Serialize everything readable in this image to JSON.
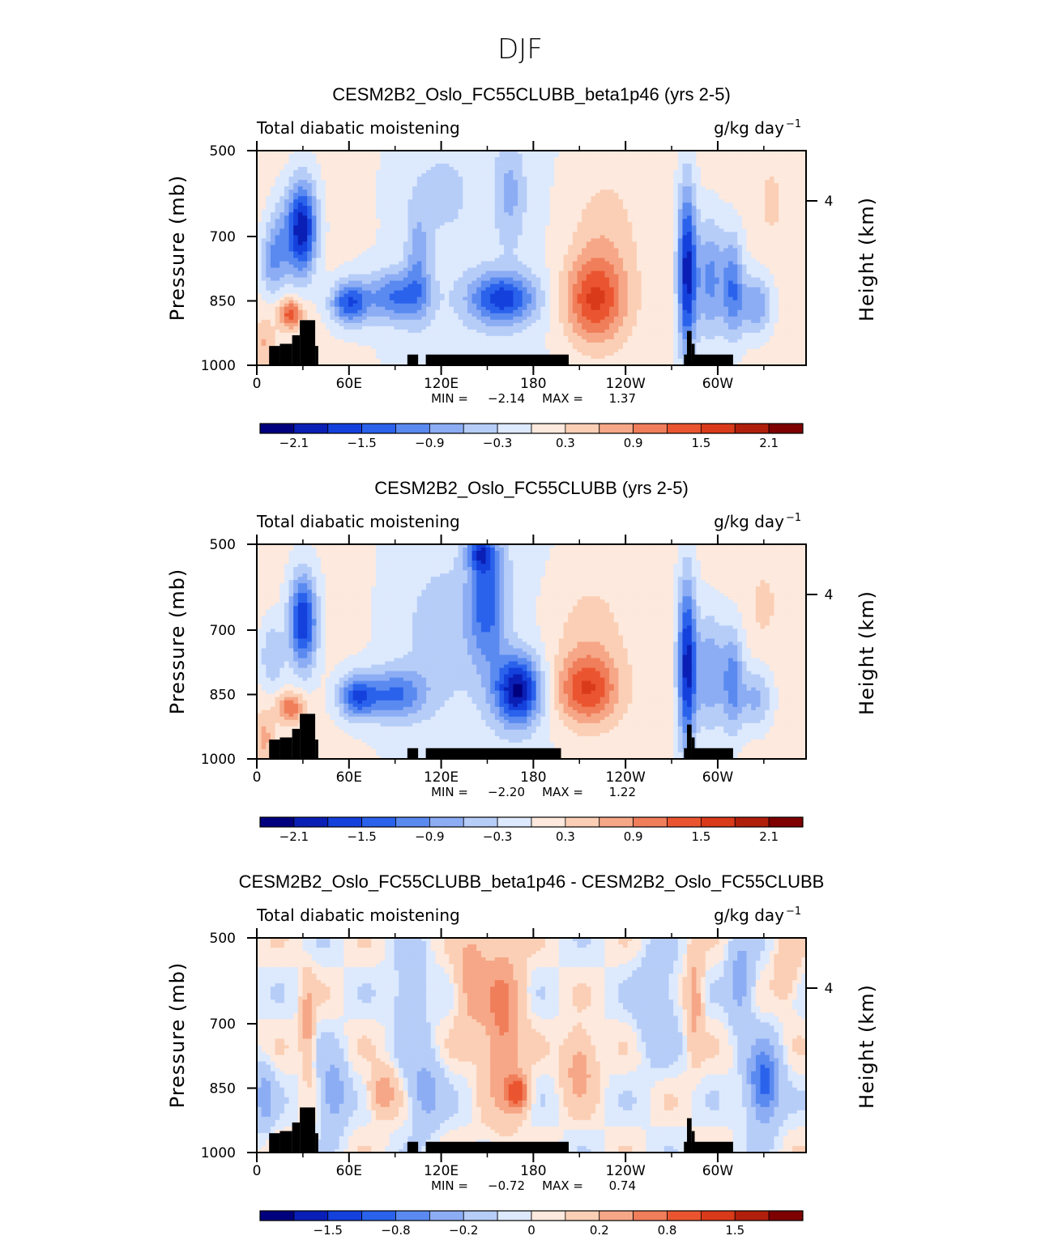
{
  "figure": {
    "season": "DJF"
  },
  "chart_data": [
    {
      "type": "heatmap",
      "title": "CESM2B2_Oslo_FC55CLUBB_beta1p46 (yrs 2-5)",
      "left_string": "Total diabatic moistening",
      "units_base": "g/kg day",
      "units_exp": "−1",
      "ylabel": "Pressure (mb)",
      "ylabel_right": "Height (km)",
      "x_ticks": [
        "0",
        "60E",
        "120E",
        "180",
        "120W",
        "60W"
      ],
      "x_tick_values": [
        0,
        60,
        120,
        180,
        240,
        300
      ],
      "xlim": [
        0,
        357.5
      ],
      "y_ticks": [
        "500",
        "700",
        "850",
        "1000"
      ],
      "y_tick_values": [
        500,
        700,
        850,
        1000
      ],
      "ylim": [
        500,
        1000
      ],
      "y_right_ticks": [
        "4"
      ],
      "min_label": "MIN =",
      "min_value": "−2.14",
      "max_label": "MAX =",
      "max_value": "1.37",
      "colorbar_labels": [
        "−2.1",
        "−1.5",
        "−0.9",
        "−0.3",
        "0.3",
        "0.9",
        "1.5",
        "2.1"
      ],
      "colorbar_label_positions": [
        1,
        3,
        5,
        7,
        9,
        11,
        13,
        15
      ],
      "field": [
        {
          "lon": 30,
          "p": 680,
          "v": -2.0,
          "sx": 9,
          "sp": 110
        },
        {
          "lon": 10,
          "p": 760,
          "v": -0.8,
          "sx": 8,
          "sp": 80
        },
        {
          "lon": 18,
          "p": 700,
          "v": -0.7,
          "sx": 10,
          "sp": 100
        },
        {
          "lon": 22,
          "p": 880,
          "v": 1.3,
          "sx": 8,
          "sp": 35
        },
        {
          "lon": 5,
          "p": 950,
          "v": 0.5,
          "sx": 6,
          "sp": 60
        },
        {
          "lon": 60,
          "p": 855,
          "v": -1.5,
          "sx": 12,
          "sp": 50
        },
        {
          "lon": 90,
          "p": 840,
          "v": -1.2,
          "sx": 20,
          "sp": 60
        },
        {
          "lon": 105,
          "p": 760,
          "v": -0.7,
          "sx": 8,
          "sp": 130
        },
        {
          "lon": 160,
          "p": 845,
          "v": -1.6,
          "sx": 22,
          "sp": 60
        },
        {
          "lon": 165,
          "p": 600,
          "v": -0.6,
          "sx": 10,
          "sp": 120
        },
        {
          "lon": 120,
          "p": 600,
          "v": -0.3,
          "sx": 20,
          "sp": 100
        },
        {
          "lon": 220,
          "p": 850,
          "v": 1.4,
          "sx": 20,
          "sp": 100
        },
        {
          "lon": 225,
          "p": 700,
          "v": 0.4,
          "sx": 22,
          "sp": 150
        },
        {
          "lon": 280,
          "p": 780,
          "v": -2.0,
          "sx": 6,
          "sp": 200
        },
        {
          "lon": 295,
          "p": 800,
          "v": -1.1,
          "sx": 10,
          "sp": 140
        },
        {
          "lon": 310,
          "p": 820,
          "v": -1.2,
          "sx": 7,
          "sp": 120
        },
        {
          "lon": 325,
          "p": 860,
          "v": -1.0,
          "sx": 10,
          "sp": 70
        },
        {
          "lon": 335,
          "p": 620,
          "v": 0.3,
          "sx": 8,
          "sp": 80
        }
      ],
      "topography": [
        {
          "lon0": 8,
          "lon1": 15,
          "p": 955
        },
        {
          "lon0": 15,
          "lon1": 23,
          "p": 950
        },
        {
          "lon0": 23,
          "lon1": 28,
          "p": 930
        },
        {
          "lon0": 28,
          "lon1": 38,
          "p": 895
        },
        {
          "lon0": 38,
          "lon1": 40,
          "p": 955
        },
        {
          "lon0": 98,
          "lon1": 105,
          "p": 975
        },
        {
          "lon0": 110,
          "lon1": 203,
          "p": 975
        },
        {
          "lon0": 278,
          "lon1": 283,
          "p": 975
        },
        {
          "lon0": 280,
          "lon1": 283,
          "p": 920
        },
        {
          "lon0": 283,
          "lon1": 285,
          "p": 950
        },
        {
          "lon0": 283,
          "lon1": 310,
          "p": 975
        }
      ]
    },
    {
      "type": "heatmap",
      "title": "CESM2B2_Oslo_FC55CLUBB (yrs 2-5)",
      "left_string": "Total diabatic moistening",
      "units_base": "g/kg day",
      "units_exp": "−1",
      "ylabel": "Pressure (mb)",
      "ylabel_right": "Height (km)",
      "x_ticks": [
        "0",
        "60E",
        "120E",
        "180",
        "120W",
        "60W"
      ],
      "x_tick_values": [
        0,
        60,
        120,
        180,
        240,
        300
      ],
      "xlim": [
        0,
        357.5
      ],
      "y_ticks": [
        "500",
        "700",
        "850",
        "1000"
      ],
      "y_tick_values": [
        500,
        700,
        850,
        1000
      ],
      "ylim": [
        500,
        1000
      ],
      "y_right_ticks": [
        "4"
      ],
      "min_label": "MIN =",
      "min_value": "−2.20",
      "max_label": "MAX =",
      "max_value": "1.22",
      "colorbar_labels": [
        "−2.1",
        "−1.5",
        "−0.9",
        "−0.3",
        "0.3",
        "0.9",
        "1.5",
        "2.1"
      ],
      "colorbar_label_positions": [
        1,
        3,
        5,
        7,
        9,
        11,
        13,
        15
      ],
      "field": [
        {
          "lon": 30,
          "p": 680,
          "v": -1.9,
          "sx": 9,
          "sp": 110
        },
        {
          "lon": 10,
          "p": 760,
          "v": -0.7,
          "sx": 8,
          "sp": 80
        },
        {
          "lon": 22,
          "p": 880,
          "v": 1.1,
          "sx": 9,
          "sp": 35
        },
        {
          "lon": 5,
          "p": 950,
          "v": 0.6,
          "sx": 6,
          "sp": 60
        },
        {
          "lon": 65,
          "p": 855,
          "v": -1.4,
          "sx": 12,
          "sp": 50
        },
        {
          "lon": 90,
          "p": 850,
          "v": -1.2,
          "sx": 20,
          "sp": 60
        },
        {
          "lon": 170,
          "p": 840,
          "v": -2.1,
          "sx": 15,
          "sp": 80
        },
        {
          "lon": 150,
          "p": 620,
          "v": -1.3,
          "sx": 12,
          "sp": 160
        },
        {
          "lon": 145,
          "p": 520,
          "v": -1.0,
          "sx": 8,
          "sp": 40
        },
        {
          "lon": 120,
          "p": 700,
          "v": -0.4,
          "sx": 25,
          "sp": 150
        },
        {
          "lon": 215,
          "p": 840,
          "v": 1.3,
          "sx": 20,
          "sp": 80
        },
        {
          "lon": 215,
          "p": 720,
          "v": 0.4,
          "sx": 25,
          "sp": 150
        },
        {
          "lon": 280,
          "p": 780,
          "v": -2.0,
          "sx": 6,
          "sp": 200
        },
        {
          "lon": 295,
          "p": 800,
          "v": -1.0,
          "sx": 10,
          "sp": 140
        },
        {
          "lon": 310,
          "p": 820,
          "v": -1.1,
          "sx": 7,
          "sp": 120
        },
        {
          "lon": 325,
          "p": 860,
          "v": -0.8,
          "sx": 10,
          "sp": 70
        },
        {
          "lon": 330,
          "p": 640,
          "v": 0.3,
          "sx": 8,
          "sp": 80
        }
      ],
      "topography": [
        {
          "lon0": 8,
          "lon1": 15,
          "p": 955
        },
        {
          "lon0": 15,
          "lon1": 23,
          "p": 950
        },
        {
          "lon0": 23,
          "lon1": 28,
          "p": 930
        },
        {
          "lon0": 28,
          "lon1": 38,
          "p": 895
        },
        {
          "lon0": 38,
          "lon1": 40,
          "p": 955
        },
        {
          "lon0": 98,
          "lon1": 105,
          "p": 975
        },
        {
          "lon0": 110,
          "lon1": 198,
          "p": 975
        },
        {
          "lon0": 278,
          "lon1": 283,
          "p": 975
        },
        {
          "lon0": 280,
          "lon1": 283,
          "p": 920
        },
        {
          "lon0": 283,
          "lon1": 285,
          "p": 950
        },
        {
          "lon0": 283,
          "lon1": 310,
          "p": 975
        }
      ]
    },
    {
      "type": "heatmap",
      "title": "CESM2B2_Oslo_FC55CLUBB_beta1p46 - CESM2B2_Oslo_FC55CLUBB",
      "left_string": "Total diabatic moistening",
      "units_base": "g/kg day",
      "units_exp": "−1",
      "ylabel": "Pressure (mb)",
      "ylabel_right": "Height (km)",
      "x_ticks": [
        "0",
        "60E",
        "120E",
        "180",
        "120W",
        "60W"
      ],
      "x_tick_values": [
        0,
        60,
        120,
        180,
        240,
        300
      ],
      "xlim": [
        0,
        357.5
      ],
      "y_ticks": [
        "500",
        "700",
        "850",
        "1000"
      ],
      "y_tick_values": [
        500,
        700,
        850,
        1000
      ],
      "ylim": [
        500,
        1000
      ],
      "y_right_ticks": [
        "4"
      ],
      "min_label": "MIN =",
      "min_value": "−0.72",
      "max_label": "MAX =",
      "max_value": "0.74",
      "colorbar_labels": [
        "−1.5",
        "−0.8",
        "−0.2",
        "0",
        "0.2",
        "0.8",
        "1.5"
      ],
      "colorbar_label_positions": [
        2,
        4,
        6,
        8,
        10,
        12,
        14
      ],
      "field": [
        {
          "lon": 160,
          "p": 700,
          "v": 0.4,
          "sx": 12,
          "sp": 200
        },
        {
          "lon": 170,
          "p": 860,
          "v": 0.6,
          "sx": 7,
          "sp": 40
        },
        {
          "lon": 140,
          "p": 600,
          "v": 0.3,
          "sx": 10,
          "sp": 120
        },
        {
          "lon": 210,
          "p": 800,
          "v": 0.3,
          "sx": 10,
          "sp": 80
        },
        {
          "lon": 82,
          "p": 860,
          "v": 0.35,
          "sx": 8,
          "sp": 50
        },
        {
          "lon": 33,
          "p": 700,
          "v": 0.3,
          "sx": 4,
          "sp": 100
        },
        {
          "lon": 50,
          "p": 860,
          "v": -0.35,
          "sx": 8,
          "sp": 80
        },
        {
          "lon": 110,
          "p": 860,
          "v": -0.3,
          "sx": 10,
          "sp": 80
        },
        {
          "lon": 100,
          "p": 650,
          "v": -0.2,
          "sx": 10,
          "sp": 120
        },
        {
          "lon": 330,
          "p": 840,
          "v": -0.6,
          "sx": 10,
          "sp": 90
        },
        {
          "lon": 315,
          "p": 600,
          "v": -0.3,
          "sx": 8,
          "sp": 100
        },
        {
          "lon": 285,
          "p": 640,
          "v": 0.3,
          "sx": 5,
          "sp": 120
        },
        {
          "lon": 260,
          "p": 650,
          "v": -0.2,
          "sx": 12,
          "sp": 120
        },
        {
          "lon": 5,
          "p": 870,
          "v": -0.3,
          "sx": 6,
          "sp": 70
        },
        {
          "lon": 345,
          "p": 580,
          "v": 0.15,
          "sx": 8,
          "sp": 80
        }
      ],
      "topography": [
        {
          "lon0": 8,
          "lon1": 15,
          "p": 955
        },
        {
          "lon0": 15,
          "lon1": 23,
          "p": 950
        },
        {
          "lon0": 23,
          "lon1": 28,
          "p": 930
        },
        {
          "lon0": 28,
          "lon1": 38,
          "p": 895
        },
        {
          "lon0": 38,
          "lon1": 40,
          "p": 955
        },
        {
          "lon0": 98,
          "lon1": 105,
          "p": 975
        },
        {
          "lon0": 110,
          "lon1": 203,
          "p": 975
        },
        {
          "lon0": 278,
          "lon1": 283,
          "p": 975
        },
        {
          "lon0": 280,
          "lon1": 283,
          "p": 920
        },
        {
          "lon0": 283,
          "lon1": 285,
          "p": 950
        },
        {
          "lon0": 283,
          "lon1": 310,
          "p": 975
        }
      ]
    }
  ],
  "colors": {
    "palette": [
      "#00007f",
      "#0a1fb5",
      "#1440dc",
      "#2a62ec",
      "#5a8af0",
      "#8cadf4",
      "#b6cdf8",
      "#dde9fd",
      "#fde9dd",
      "#fbcfb5",
      "#f6a787",
      "#f07e5a",
      "#ea5530",
      "#d93a1a",
      "#b01f0c",
      "#7f0000"
    ],
    "diff_palette": [
      "#00007f",
      "#0a1fb5",
      "#1440dc",
      "#2a62ec",
      "#5a8af0",
      "#8cadf4",
      "#b6cdf8",
      "#dde9fd",
      "#fde9dd",
      "#fbcfb5",
      "#f6a787",
      "#f07e5a",
      "#ea5530",
      "#d93a1a",
      "#b01f0c",
      "#7f0000"
    ],
    "topography": "#000000"
  }
}
